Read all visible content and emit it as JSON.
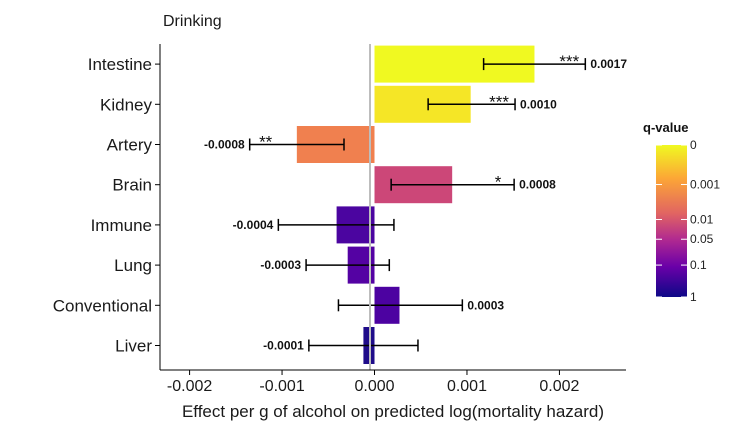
{
  "chart_data": {
    "type": "bar",
    "orientation": "horizontal",
    "title": "Drinking",
    "xlabel": "Effect per g of alcohol on predicted log(mortality hazard)",
    "xlim": [
      -0.00232,
      0.00272
    ],
    "xticks": [
      -0.002,
      -0.001,
      0.0,
      0.001,
      0.002
    ],
    "xtick_labels": [
      "-0.002",
      "-0.001",
      "0.000",
      "0.001",
      "0.002"
    ],
    "grid": false,
    "categories": [
      "Intestine",
      "Kidney",
      "Artery",
      "Brain",
      "Immune",
      "Lung",
      "Conventional",
      "Liver"
    ],
    "values": [
      0.00173,
      0.00104,
      -0.00084,
      0.00084,
      -0.00041,
      -0.00029,
      0.00027,
      -0.00012
    ],
    "value_labels": [
      "0.0017",
      "0.0010",
      "-0.0008",
      "0.0008",
      "-0.0004",
      "-0.0003",
      "0.0003",
      "-0.0001"
    ],
    "ci_low": [
      0.00118,
      0.00058,
      -0.00135,
      0.00018,
      -0.00104,
      -0.00074,
      -0.00039,
      -0.00071
    ],
    "ci_high": [
      0.00228,
      0.00152,
      -0.00033,
      0.00151,
      0.00021,
      0.00016,
      0.00095,
      0.00047
    ],
    "significance": [
      "***",
      "***",
      "**",
      "*",
      "",
      "",
      "",
      ""
    ],
    "bar_colors": [
      "#f0f921",
      "#f5e626",
      "#f0804f",
      "#cc4778",
      "#4b05a0",
      "#5402a3",
      "#4c02a1",
      "#1f0c8a"
    ],
    "legend": {
      "title": "q-value",
      "position": "right",
      "labels": [
        "0",
        "0.001",
        "0.01",
        "0.05",
        "0.1",
        "1"
      ],
      "colors": [
        "#f0f921",
        "#fca636",
        "#e16462",
        "#b12a90",
        "#6a00a8",
        "#0d0887"
      ]
    }
  }
}
